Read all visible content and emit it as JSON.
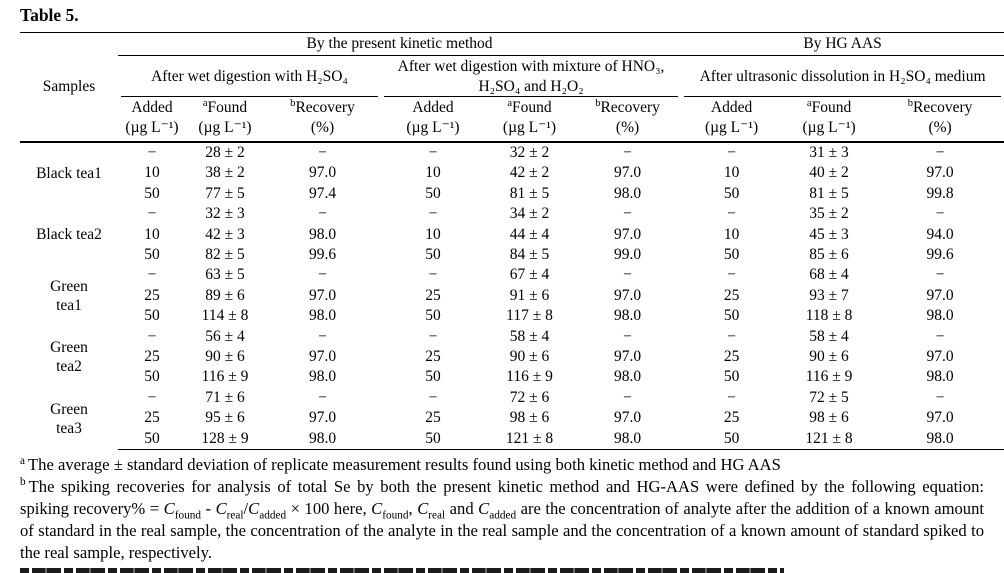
{
  "page": {
    "title": "Table 5."
  },
  "table": {
    "samples_header": "Samples",
    "group_headers": [
      {
        "label": "By the present kinetic method"
      },
      {
        "label": "By HG AAS"
      }
    ],
    "method_headers": [
      "After wet digestion with H₂SO₄",
      "After wet digestion with mixture of HNO₃, H₂SO₄ and H₂O₂",
      "After ultrasonic dissolution in H₂SO₄ medium"
    ],
    "col": {
      "added": "Added",
      "found": "Found",
      "found_marker": "a",
      "recovery": "Recovery",
      "recovery_marker": "b",
      "unit_conc": "(µg L⁻¹)",
      "unit_pct": "(%)"
    },
    "body": [
      {
        "sample": "Black tea1",
        "lines": [
          [
            "−",
            "28 ± 2",
            "−",
            "−",
            "32 ± 2",
            "−",
            "−",
            "31 ± 3",
            "−"
          ],
          [
            "10",
            "38 ± 2",
            "97.0",
            "10",
            "42 ± 2",
            "97.0",
            "10",
            "40 ± 2",
            "97.0"
          ],
          [
            "50",
            "77 ± 5",
            "97.4",
            "50",
            "81 ± 5",
            "98.0",
            "50",
            "81 ± 5",
            "99.8"
          ]
        ]
      },
      {
        "sample": "Black tea2",
        "lines": [
          [
            "−",
            "32 ± 3",
            "−",
            "−",
            "34 ± 2",
            "−",
            "−",
            "35 ± 2",
            "−"
          ],
          [
            "10",
            "42 ± 3",
            "98.0",
            "10",
            "44 ± 4",
            "97.0",
            "10",
            "45 ± 3",
            "94.0"
          ],
          [
            "50",
            "82 ± 5",
            "99.6",
            "50",
            "84 ± 5",
            "99.0",
            "50",
            "85 ± 6",
            "99.6"
          ]
        ]
      },
      {
        "sample": "Green\ntea1",
        "lines": [
          [
            "−",
            "63 ± 5",
            "−",
            "−",
            "67 ± 4",
            "−",
            "−",
            "68 ± 4",
            "−"
          ],
          [
            "25",
            "89 ± 6",
            "97.0",
            "25",
            "91 ± 6",
            "97.0",
            "25",
            "93 ± 7",
            "97.0"
          ],
          [
            "50",
            "114 ± 8",
            "98.0",
            "50",
            "117 ± 8",
            "98.0",
            "50",
            "118 ± 8",
            "98.0"
          ]
        ]
      },
      {
        "sample": "Green\ntea2",
        "lines": [
          [
            "−",
            "56 ± 4",
            "−",
            "−",
            "58 ± 4",
            "−",
            "−",
            "58 ± 4",
            "−"
          ],
          [
            "25",
            "90 ± 6",
            "97.0",
            "25",
            "90 ± 6",
            "97.0",
            "25",
            "90 ± 6",
            "97.0"
          ],
          [
            "50",
            "116 ± 9",
            "98.0",
            "50",
            "116 ± 9",
            "98.0",
            "50",
            "116 ± 9",
            "98.0"
          ]
        ]
      },
      {
        "sample": "Green\ntea3",
        "lines": [
          [
            "−",
            "71 ± 6",
            "−",
            "−",
            "72 ± 6",
            "−",
            "−",
            "72 ± 5",
            "−"
          ],
          [
            "25",
            "95 ± 6",
            "97.0",
            "25",
            "98 ± 6",
            "97.0",
            "25",
            "98 ± 6",
            "97.0"
          ],
          [
            "50",
            "128 ± 9",
            "98.0",
            "50",
            "121 ± 8",
            "98.0",
            "50",
            "121 ± 8",
            "98.0"
          ]
        ]
      }
    ]
  },
  "footnotes": {
    "a_marker": "a",
    "a_text": "The average ± standard deviation of replicate measurement results found using both kinetic method and HG AAS",
    "b_marker": "b",
    "b": {
      "s1": "The spiking recoveries for analysis of total Se by both the present kinetic method and HG-AAS were defined by the following equation: spiking recovery% = ",
      "c": "C",
      "sub_found": "found",
      "s2": " - ",
      "sub_real": "real",
      "s3": "/",
      "sub_added": "added",
      "s4": " × 100 here, ",
      "s5": ", ",
      "s6": " and ",
      "s7": " are the concentration of analyte after the addition of a known amount of standard in the real sample, the concentration of the analyte in the real sample and the concentration of a known amount of standard spiked to the real sample, respectively."
    }
  }
}
